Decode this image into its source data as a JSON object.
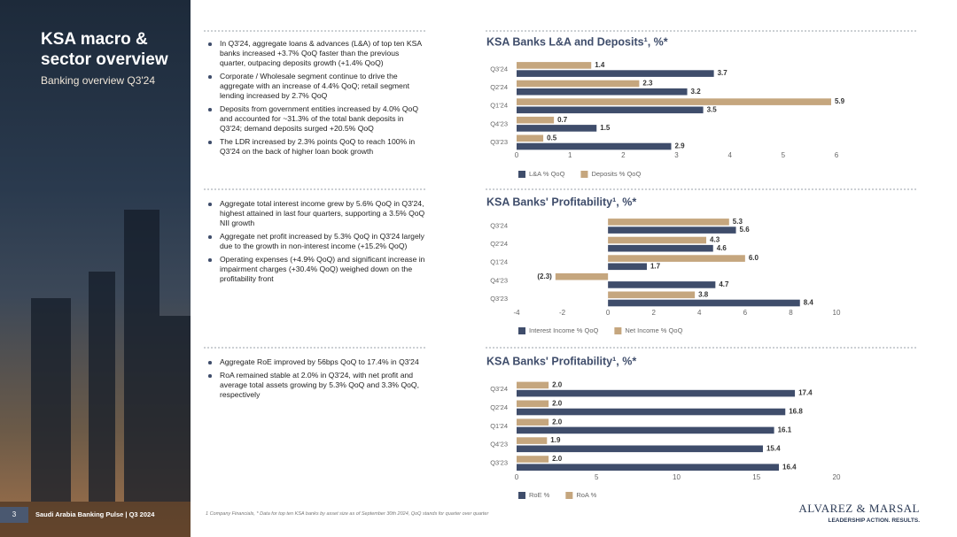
{
  "sidebar": {
    "title": "KSA macro & sector overview",
    "subtitle": "Banking overview Q3'24"
  },
  "sections": [
    [
      "In Q3'24, aggregate loans & advances (L&A) of top ten KSA banks increased +3.7% QoQ faster than the previous quarter, outpacing deposits growth (+1.4% QoQ)",
      "Corporate / Wholesale segment continue to drive the aggregate with an increase of 4.4% QoQ; retail segment lending increased by 2.7% QoQ",
      "Deposits from government entities increased by 4.0% QoQ and accounted for ~31.3% of the total bank deposits in Q3'24; demand deposits surged +20.5% QoQ",
      "The LDR increased by 2.3% points QoQ to reach 100% in Q3'24 on the back of higher loan book growth"
    ],
    [
      "Aggregate total interest income grew by 5.6% QoQ in Q3'24, highest attained in last four quarters, supporting a 3.5% QoQ NII growth",
      "Aggregate net profit increased by 5.3% QoQ in Q3'24 largely due to the growth in non-interest income (+15.2% QoQ)",
      "Operating expenses (+4.9% QoQ) and significant increase in impairment charges (+30.4% QoQ) weighed down on the profitability front"
    ],
    [
      "Aggregate RoE improved by 56bps QoQ to 17.4% in Q3'24",
      "RoA remained stable at 2.0% in Q3'24, with net profit and average total assets growing by 5.3% QoQ and 3.3% QoQ, respectively"
    ]
  ],
  "chart_data": [
    {
      "type": "hbar",
      "title": "KSA Banks L&A and Deposits¹, %*",
      "categories": [
        "Q3'24",
        "Q2'24",
        "Q1'24",
        "Q4'23",
        "Q3'23"
      ],
      "series": [
        {
          "name": "L&A % QoQ",
          "color": "#3f4d6b",
          "values": [
            3.7,
            3.2,
            3.5,
            1.5,
            2.9
          ]
        },
        {
          "name": "Deposits % QoQ",
          "color": "#c5a67e",
          "values": [
            1.4,
            2.3,
            5.9,
            0.7,
            0.5
          ]
        }
      ],
      "xlim": [
        0,
        6
      ],
      "xticks": [
        0,
        1,
        2,
        3,
        4,
        5,
        6
      ]
    },
    {
      "type": "hbar",
      "title": "KSA Banks' Profitability¹, %*",
      "categories": [
        "Q3'24",
        "Q2'24",
        "Q1'24",
        "Q4'23",
        "Q3'23"
      ],
      "series": [
        {
          "name": "Interest Income % QoQ",
          "color": "#3f4d6b",
          "values": [
            5.6,
            4.6,
            1.7,
            4.7,
            8.4
          ]
        },
        {
          "name": "Net Income % QoQ",
          "color": "#c5a67e",
          "values": [
            5.3,
            4.3,
            6.0,
            -2.3,
            3.8
          ],
          "value_labels": [
            "5.3",
            "4.3",
            "6.0",
            "(2.3)",
            "3.8"
          ]
        }
      ],
      "xlim": [
        -4,
        10
      ],
      "xticks": [
        -4,
        -2,
        0,
        2,
        4,
        6,
        8,
        10
      ]
    },
    {
      "type": "hbar",
      "title": "KSA Banks' Profitability¹, %*",
      "categories": [
        "Q3'24",
        "Q2'24",
        "Q1'24",
        "Q4'23",
        "Q3'23"
      ],
      "series": [
        {
          "name": "RoE %",
          "color": "#3f4d6b",
          "values": [
            17.4,
            16.8,
            16.1,
            15.4,
            16.4
          ]
        },
        {
          "name": "RoA %",
          "color": "#c5a67e",
          "values": [
            2.0,
            2.0,
            2.0,
            1.9,
            2.0
          ],
          "value_labels": [
            "2.0",
            "2.0",
            "2.0",
            "1.9",
            "2.0"
          ]
        }
      ],
      "xlim": [
        0,
        20
      ],
      "xticks": [
        0,
        5,
        10,
        15,
        20
      ]
    }
  ],
  "footer": {
    "page": "3",
    "report": "Saudi Arabia Banking Pulse | Q3 2024",
    "note": "1 Company Financials, * Data for top ten KSA banks by asset size as of September 30th 2024, QoQ stands for quarter over quarter",
    "logo": "ALVAREZ & MARSAL",
    "tagline": "LEADERSHIP ACTION. RESULTS."
  }
}
